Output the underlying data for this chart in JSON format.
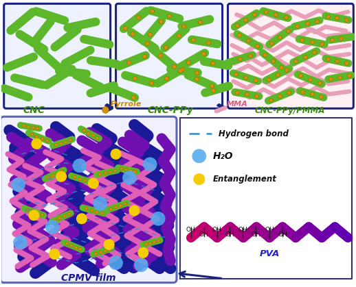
{
  "bg_color": "#ffffff",
  "box_color": "#1a237e",
  "green_color": "#5cb82a",
  "pink_color": "#e8a0b8",
  "orange_dot_color": "#d4920a",
  "blue_ball_color": "#55aaee",
  "yellow_ball_color": "#f5cc00",
  "purple_color": "#7010b0",
  "navy_color": "#1a1a99",
  "magenta_color": "#cc00aa",
  "arrow_color": "#1a237e",
  "label_cnc": "CNC",
  "label_cncppy": "CNC-PPy",
  "label_cncppy_pmma": "CNC-PPy/PMMA",
  "label_pyrrole": "Pyrrole",
  "label_mma": "MMA",
  "label_cpmv": "CPMV film",
  "label_hbond": "Hydrogen bond",
  "label_h2o": "H₂O",
  "label_entanglement": "Entanglement",
  "label_pva": "PVA",
  "green_text_color": "#3a8a10",
  "orange_text_color": "#cc8800",
  "pink_text_color": "#d06080"
}
